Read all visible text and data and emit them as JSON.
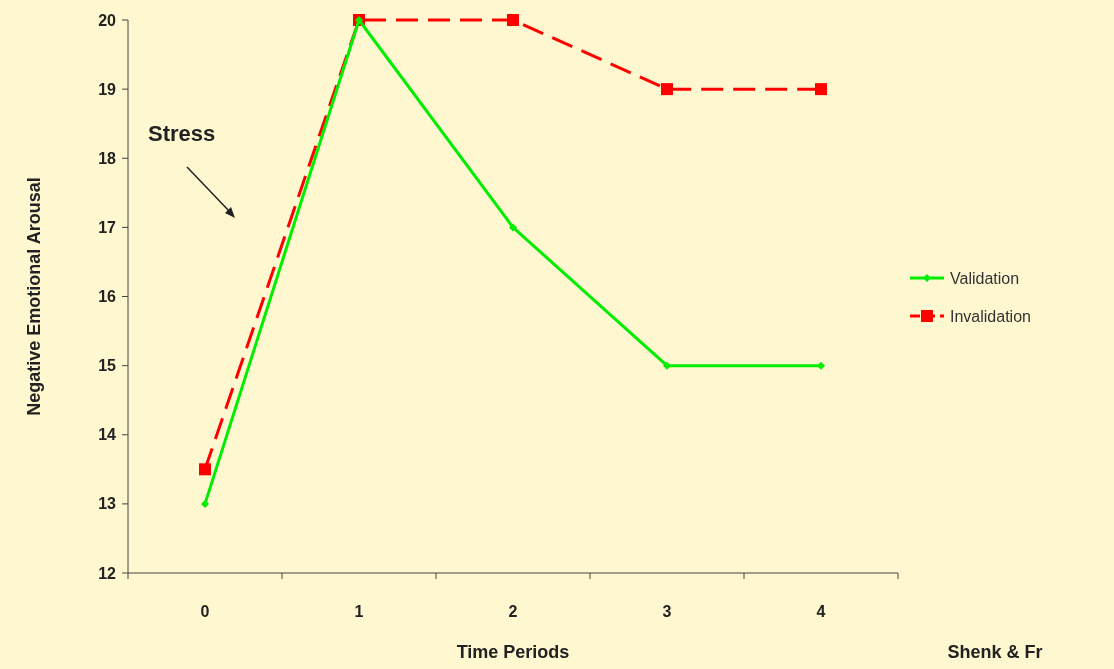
{
  "chart_data": {
    "type": "line",
    "ylabel": "Negative Emotional Arousal",
    "xlabel": "Time Periods",
    "categories": [
      "0",
      "1",
      "2",
      "3",
      "4"
    ],
    "ylim": [
      12,
      20
    ],
    "yticks": [
      12,
      13,
      14,
      15,
      16,
      17,
      18,
      19,
      20
    ],
    "series": [
      {
        "name": "Validation",
        "color": "#00ee00",
        "values": [
          13,
          20,
          17,
          15,
          15
        ],
        "marker": "diamond",
        "line_style": "solid"
      },
      {
        "name": "Invalidation",
        "color": "#ff0000",
        "values": [
          13.5,
          20,
          20,
          19,
          19
        ],
        "marker": "square",
        "line_style": "dashed"
      }
    ],
    "annotations": [
      "Stress",
      "Shenk & Fr"
    ],
    "legend": "right",
    "grid": false
  }
}
